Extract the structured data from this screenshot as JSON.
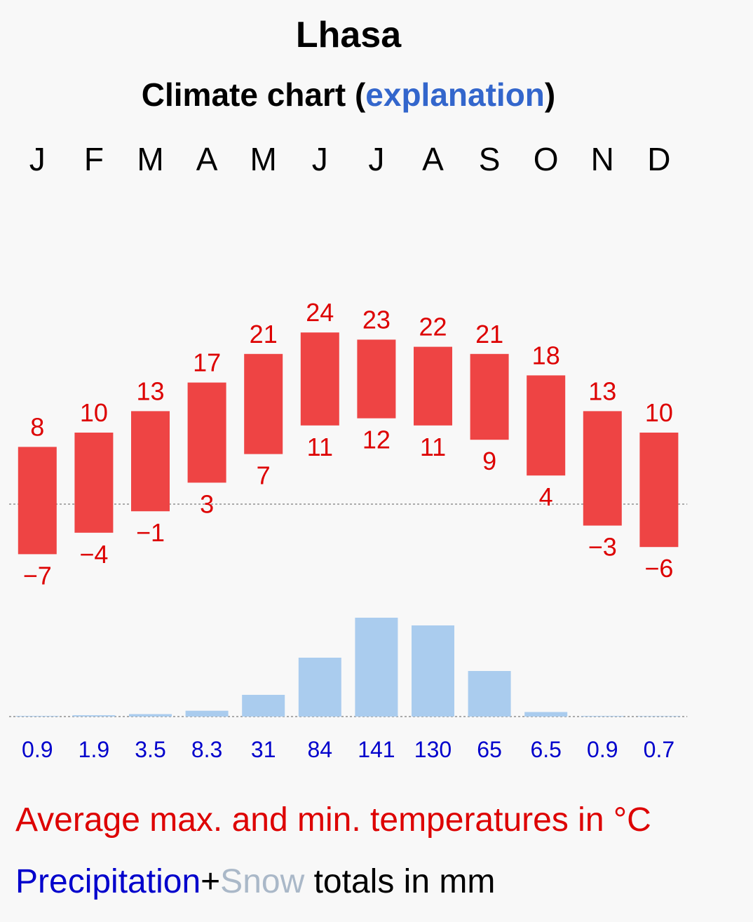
{
  "title": "Lhasa",
  "subtitle": {
    "prefix": "Climate chart (",
    "link": "explanation",
    "suffix": ")"
  },
  "chart_data": {
    "type": "bar",
    "categories": [
      "J",
      "F",
      "M",
      "A",
      "M",
      "J",
      "J",
      "A",
      "S",
      "O",
      "N",
      "D"
    ],
    "series": [
      {
        "name": "Average max. temperature (°C)",
        "values": [
          8,
          10,
          13,
          17,
          21,
          24,
          23,
          22,
          21,
          18,
          13,
          10
        ]
      },
      {
        "name": "Average min. temperature (°C)",
        "values": [
          -7,
          -4,
          -1,
          3,
          7,
          11,
          12,
          11,
          9,
          4,
          -3,
          -6
        ]
      },
      {
        "name": "Precipitation totals (mm)",
        "values": [
          0.9,
          1.9,
          3.5,
          8.3,
          31,
          84,
          141,
          130,
          65,
          6.5,
          0.9,
          0.7
        ]
      }
    ],
    "max_labels": [
      "8",
      "10",
      "13",
      "17",
      "21",
      "24",
      "23",
      "22",
      "21",
      "18",
      "13",
      "10"
    ],
    "min_labels": [
      "−7",
      "−4",
      "−1",
      "3",
      "7",
      "11",
      "12",
      "11",
      "9",
      "4",
      "−3",
      "−6"
    ],
    "precip_labels": [
      "0.9",
      "1.9",
      "3.5",
      "8.3",
      "31",
      "84",
      "141",
      "130",
      "65",
      "6.5",
      "0.9",
      "0.7"
    ],
    "temp_unit": "°C",
    "precip_unit": "mm"
  },
  "colors": {
    "temp_bar": "#ee4444",
    "temp_text": "#dd0000",
    "precip_bar": "#aaccee",
    "precip_text": "#0000cc",
    "zero_line": "#aaaaaa"
  },
  "legend": {
    "temperature": "Average max. and min. temperatures in °C",
    "precip_word": "Precipitation",
    "plus": "+",
    "snow_word": "Snow",
    "totals": " totals in mm"
  }
}
